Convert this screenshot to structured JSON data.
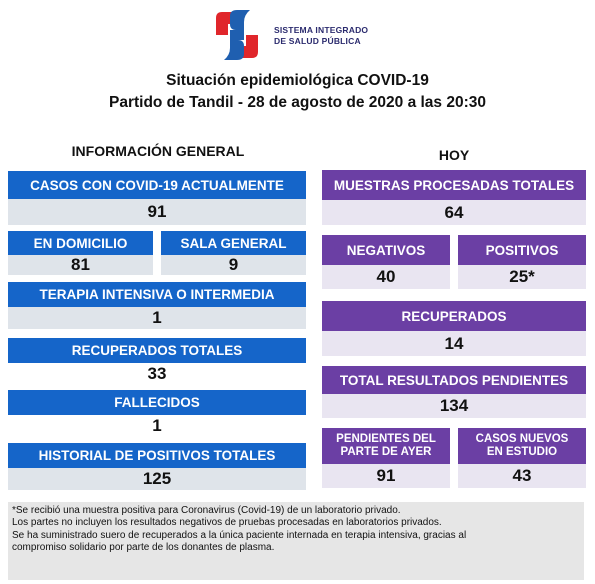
{
  "header": {
    "logo_line1": "SISTEMA INTEGRADO",
    "logo_line2": "DE SALUD PÚBLICA",
    "title_line1": "Situación epidemiológica COVID-19",
    "title_line2": "Partido de Tandil - 28 de agosto de 2020 a las 20:30"
  },
  "left": {
    "section_title": "INFORMACIÓN GENERAL",
    "casos_label": "CASOS CON COVID-19 ACTUALMENTE",
    "casos_value": "91",
    "domicilio_label": "EN DOMICILIO",
    "domicilio_value": "81",
    "sala_label": "SALA GENERAL",
    "sala_value": "9",
    "terapia_label": "TERAPIA INTENSIVA O INTERMEDIA",
    "terapia_value": "1",
    "recuperados_label": "RECUPERADOS TOTALES",
    "recuperados_value": "33",
    "fallecidos_label": "FALLECIDOS",
    "fallecidos_value": "1",
    "historial_label": "HISTORIAL DE POSITIVOS TOTALES",
    "historial_value": "125"
  },
  "right": {
    "section_title": "HOY",
    "muestras_label": "MUESTRAS PROCESADAS TOTALES",
    "muestras_value": "64",
    "negativos_label": "NEGATIVOS",
    "negativos_value": "40",
    "positivos_label": "POSITIVOS",
    "positivos_value": "25*",
    "recuperados_label": "RECUPERADOS",
    "recuperados_value": "14",
    "pendientes_label": "TOTAL RESULTADOS PENDIENTES",
    "pendientes_value": "134",
    "pend_ayer_label_1": "PENDIENTES DEL",
    "pend_ayer_label_2": "PARTE DE AYER",
    "pend_ayer_value": "91",
    "nuevos_label_1": "CASOS NUEVOS",
    "nuevos_label_2": "EN ESTUDIO",
    "nuevos_value": "43"
  },
  "notes": [
    "*Se recibió una muestra positiva para Coronavirus (Covid-19) de un laboratorio privado.",
    "Los partes no incluyen los resultados negativos de pruebas procesadas en laboratorios privados.",
    "Se ha suministrado suero de recuperados a la única paciente internada en terapia intensiva, gracias al",
    "compromiso solidario por parte de los donantes de plasma."
  ],
  "colors": {
    "blue": "#1565c9",
    "purple": "#6b3fa4",
    "logo_red": "#e0262b",
    "logo_blue": "#1f5fb0"
  }
}
